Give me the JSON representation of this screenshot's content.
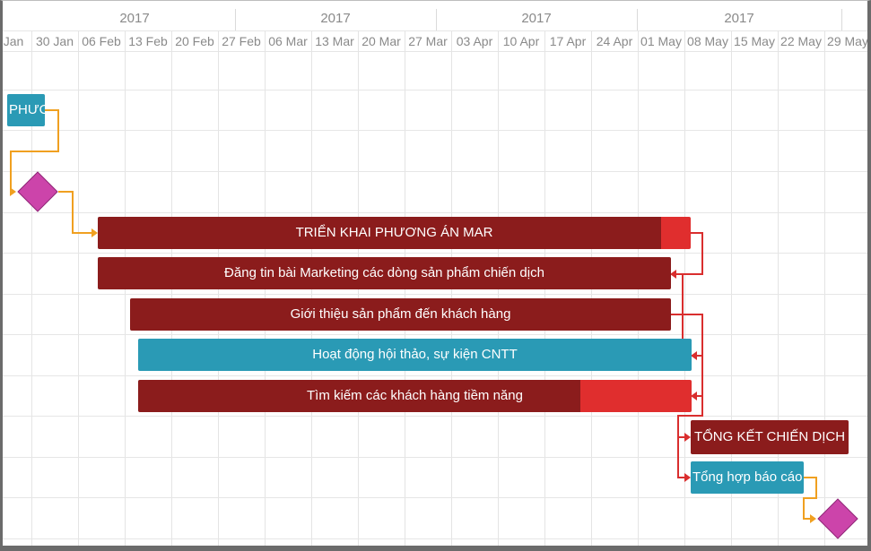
{
  "timeline": {
    "years": [
      "2017",
      "2017",
      "2017",
      "2017"
    ],
    "weeks": [
      "Jan",
      "30 Jan",
      "06 Feb",
      "13 Feb",
      "20 Feb",
      "27 Feb",
      "06 Mar",
      "13 Mar",
      "20 Mar",
      "27 Mar",
      "03 Apr",
      "10 Apr",
      "17 Apr",
      "24 Apr",
      "01 May",
      "08 May",
      "15 May",
      "22 May",
      "29 May"
    ]
  },
  "tasks": {
    "prep_phase": {
      "label": "PHƯƠ",
      "color": "#2a9ab5"
    },
    "milestone_start": {
      "color": "#cc44aa"
    },
    "deploy_plan": {
      "label": "TRIỂN KHAI PHƯƠNG ÁN MAR",
      "progress": 0.95,
      "color": "#8b1c1c",
      "rest_color": "#e02e2e"
    },
    "post_articles": {
      "label": "Đăng tin bài Marketing các dòng sản phẩm chiến dịch",
      "progress": 1.0,
      "color": "#8b1c1c"
    },
    "introduce_products": {
      "label": "Giới thiệu sản phẩm đến khách hàng",
      "progress": 1.0,
      "color": "#8b1c1c"
    },
    "seminar_events": {
      "label": "Hoạt động hội thảo, sự kiện CNTT",
      "progress": 1.0,
      "color": "#2a9ab5"
    },
    "find_customers": {
      "label": "Tìm kiếm các khách hàng tiềm năng",
      "progress": 0.8,
      "color": "#8b1c1c",
      "rest_color": "#e02e2e"
    },
    "campaign_summary": {
      "label": "TỔNG KẾT CHIẾN DỊCH",
      "progress": 1.0,
      "color": "#8b1c1c"
    },
    "report_summary": {
      "label": "Tổng hợp báo cáo c",
      "progress": 1.0,
      "color": "#2a9ab5"
    },
    "milestone_end": {
      "color": "#cc44aa"
    }
  },
  "colors": {
    "link_orange": "#f0a020",
    "link_red": "#d92e2e",
    "grid": "#e4e4e4"
  }
}
